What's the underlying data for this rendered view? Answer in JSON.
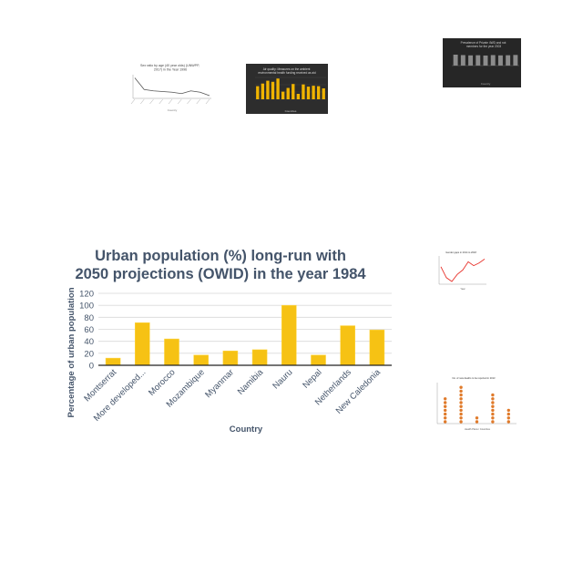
{
  "chart_data": [
    {
      "type": "bar",
      "title": "Urban population (%) long-run with 2050 projections (OWID) in the year 1984",
      "xlabel": "Country",
      "ylabel": "Percentage of urban population",
      "categories": [
        "Montserrat",
        "More developed...",
        "Morocco",
        "Mozambique",
        "Myanmar",
        "Namibia",
        "Nauru",
        "Nepal",
        "Netherlands",
        "New Caledonia"
      ],
      "values": [
        12,
        71,
        44,
        17,
        24,
        26,
        100,
        17,
        66,
        59
      ],
      "ylim": [
        0,
        120
      ],
      "yticks": [
        0,
        20,
        40,
        60,
        80,
        100,
        120
      ],
      "grid": true,
      "colors": {
        "bar": "#f6c214",
        "bar_edge": "#ffd84a",
        "text": "#44546a"
      }
    },
    {
      "type": "line",
      "title": "Sex ratio by age (40 year olds) (UNWPP, 2017) in the Year 1996",
      "xlabel": "Country",
      "ylabel": "",
      "x": [
        "",
        "",
        "",
        "",
        "",
        "",
        "",
        "",
        ""
      ],
      "values": [
        2.1,
        1.25,
        1.15,
        1.1,
        1.05,
        0.95,
        1.15,
        1.05,
        0.8
      ],
      "colors": {
        "line": "#555555",
        "background": "#ffffff"
      }
    },
    {
      "type": "bar",
      "title": "Air quality: Measures on the ambient environmental health funding received as aid",
      "xlabel": "Countries",
      "ylabel": "",
      "categories": [
        "",
        "",
        "",
        "",
        "",
        "",
        "",
        "",
        "",
        "",
        "",
        "",
        "",
        ""
      ],
      "values": [
        60,
        72,
        85,
        80,
        95,
        35,
        52,
        70,
        25,
        68,
        58,
        62,
        60,
        50
      ],
      "colors": {
        "bar": "#f0b400",
        "background": "#2d2d2d"
      }
    },
    {
      "type": "bar",
      "title": "Prevalence of Private 4WD and not members for the year 2003",
      "xlabel": "Country",
      "ylabel": "",
      "categories": [
        "",
        "",
        "",
        "",
        "",
        "",
        "",
        "",
        ""
      ],
      "values": [
        75,
        72,
        70,
        71,
        69,
        72,
        70,
        71,
        73
      ],
      "colors": {
        "bar": "#8c8c8c",
        "background": "#262626"
      }
    },
    {
      "type": "line",
      "title": "Gender gaps in 2014 to 2018",
      "xlabel": "Year",
      "ylabel": "",
      "x": [
        "",
        "",
        "",
        "",
        "",
        "",
        "",
        "",
        ""
      ],
      "values": [
        3.2,
        1.2,
        0.5,
        1.8,
        2.6,
        4.1,
        3.4,
        3.9,
        4.6
      ],
      "colors": {
        "line": "#e8332c",
        "background": "#ffffff"
      }
    },
    {
      "type": "scatter",
      "title": "No. of new deaths to be reported in 2013",
      "xlabel": "Health Plans / Countries",
      "ylabel": "",
      "categories": [
        "",
        "",
        "",
        "",
        ""
      ],
      "values": [
        7,
        10,
        2,
        8,
        4
      ],
      "colors": {
        "marker": "#e07a2a",
        "background": "#ffffff"
      }
    }
  ]
}
